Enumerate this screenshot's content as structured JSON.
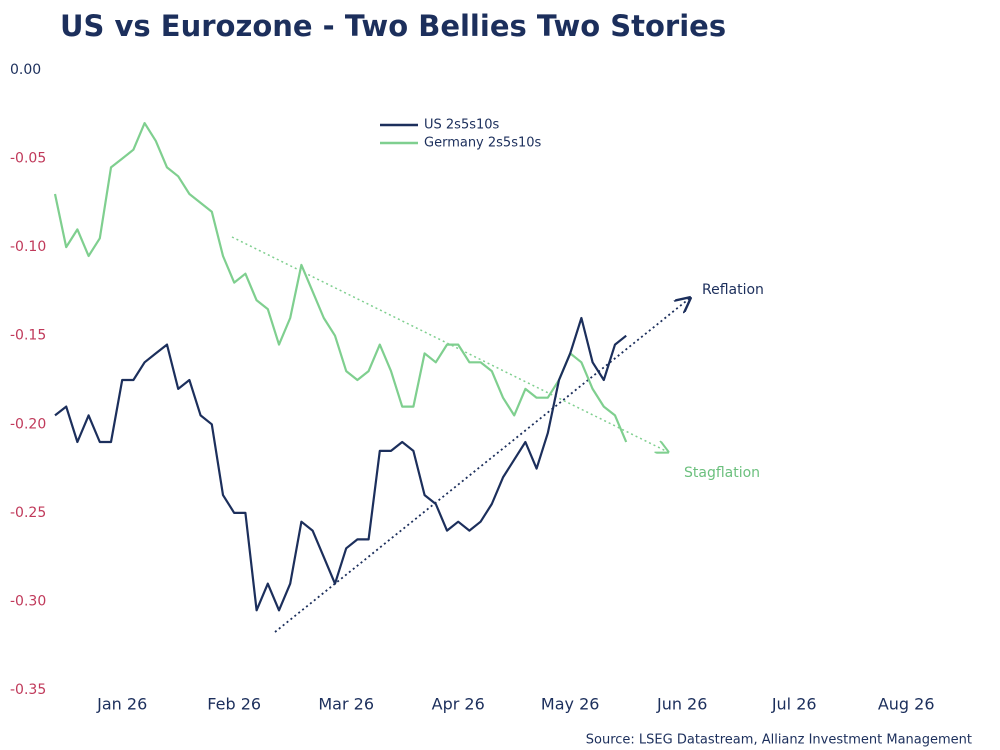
{
  "chart_data": {
    "type": "line",
    "title": "US vs Eurozone - Two Bellies Two Stories",
    "categories": [
      null,
      null,
      null,
      null,
      null,
      null,
      "Jan 26",
      null,
      null,
      null,
      null,
      null,
      null,
      null,
      null,
      null,
      "Feb 26",
      null,
      null,
      null,
      null,
      null,
      null,
      null,
      null,
      null,
      "Mar 26",
      null,
      null,
      null,
      null,
      null,
      null,
      null,
      null,
      null,
      "Apr 26",
      null,
      null,
      null,
      null,
      null,
      null,
      null,
      null,
      null,
      "May 26",
      null,
      null,
      null,
      null,
      null,
      null,
      null,
      null,
      null,
      "Jun 26",
      null,
      null,
      null,
      null,
      null,
      null,
      null,
      null,
      null,
      "Jul 26",
      null,
      null,
      null,
      null,
      null,
      null,
      null,
      null,
      null,
      "Aug 26",
      null,
      null,
      null
    ],
    "series": [
      {
        "name": "US 2s5s10s",
        "color": "#1c2f5c",
        "values": [
          -0.195,
          -0.19,
          -0.21,
          -0.195,
          -0.21,
          -0.21,
          -0.175,
          -0.175,
          -0.165,
          -0.16,
          -0.155,
          -0.18,
          -0.175,
          -0.195,
          -0.2,
          -0.24,
          -0.25,
          -0.25,
          -0.305,
          -0.29,
          -0.305,
          -0.29,
          -0.255,
          -0.26,
          -0.275,
          -0.29,
          -0.27,
          -0.265,
          -0.265,
          -0.215,
          -0.215,
          -0.21,
          -0.215,
          -0.24,
          -0.245,
          -0.26,
          -0.255,
          -0.26,
          -0.255,
          -0.245,
          -0.23,
          -0.22,
          -0.21,
          -0.225,
          -0.205,
          -0.175,
          -0.16,
          -0.14,
          -0.165,
          -0.175,
          -0.155,
          -0.15,
          null,
          null,
          null,
          null,
          null,
          null,
          null,
          null,
          null,
          null,
          null,
          null,
          null,
          null,
          null,
          null,
          null,
          null,
          null,
          null,
          null,
          null,
          null,
          null,
          null,
          null,
          null,
          null
        ]
      },
      {
        "name": "Germany 2s5s10s",
        "color": "#7fcf8f",
        "values": [
          -0.07,
          -0.1,
          -0.09,
          -0.105,
          -0.095,
          -0.055,
          -0.05,
          -0.045,
          -0.03,
          -0.04,
          -0.055,
          -0.06,
          -0.07,
          -0.075,
          -0.08,
          -0.105,
          -0.12,
          -0.115,
          -0.13,
          -0.135,
          -0.155,
          -0.14,
          -0.11,
          -0.125,
          -0.14,
          -0.15,
          -0.17,
          -0.175,
          -0.17,
          -0.155,
          -0.17,
          -0.19,
          -0.19,
          -0.16,
          -0.165,
          -0.155,
          -0.155,
          -0.165,
          -0.165,
          -0.17,
          -0.185,
          -0.195,
          -0.18,
          -0.185,
          -0.185,
          -0.175,
          -0.16,
          -0.165,
          -0.18,
          -0.19,
          -0.195,
          -0.21,
          null,
          null,
          null,
          null,
          null,
          null,
          null,
          null,
          null,
          null,
          null,
          null,
          null,
          null,
          null,
          null,
          null,
          null,
          null,
          null,
          null,
          null,
          null,
          null,
          null,
          null,
          null,
          null
        ]
      }
    ],
    "ylim": [
      -0.35,
      0
    ],
    "yticks": [
      {
        "value": 0,
        "label": "0.00"
      },
      {
        "value": -0.05,
        "label": "-0.05"
      },
      {
        "value": -0.1,
        "label": "-0.10"
      },
      {
        "value": -0.15,
        "label": "-0.15"
      },
      {
        "value": -0.2,
        "label": "-0.20"
      },
      {
        "value": -0.25,
        "label": "-0.25"
      },
      {
        "value": -0.3,
        "label": "-0.30"
      },
      {
        "value": -0.35,
        "label": "-0.35"
      }
    ],
    "grid": false,
    "annotations": [
      "Reflation",
      "Stagflation"
    ],
    "source": "Source: LSEG Datastream, Allianz Investment Management"
  }
}
